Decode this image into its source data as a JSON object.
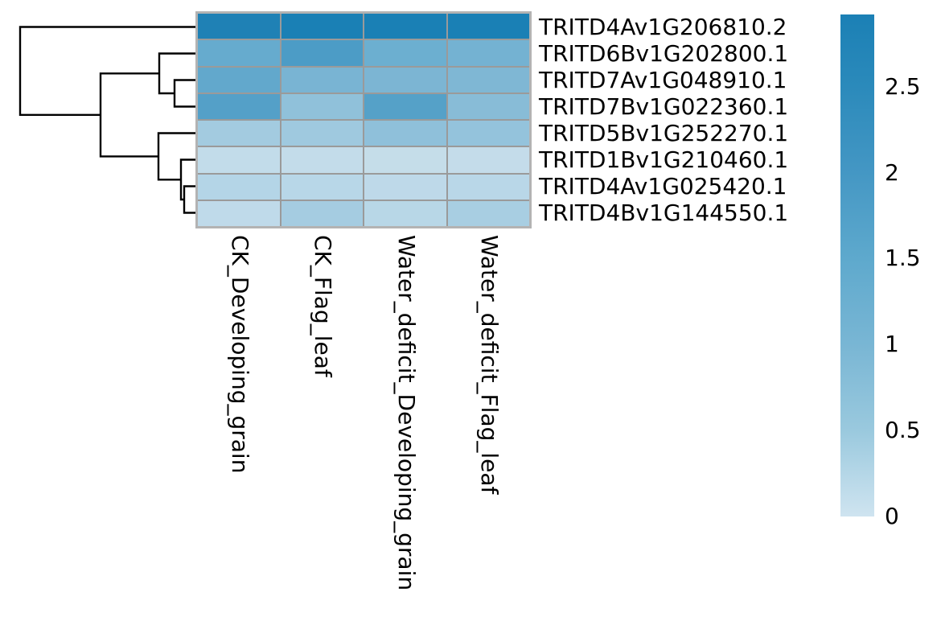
{
  "figure": {
    "background": "#ffffff",
    "text_color": "#000000"
  },
  "chart_data": {
    "type": "heatmap",
    "title": "",
    "xlabel": "",
    "ylabel": "",
    "legend_position": "right",
    "grid": "on",
    "grid_line_color": "#9a9a9a",
    "border_color": "#b3b3b3",
    "columns": [
      "CK_Developing_grain",
      "CK_Flag_leaf",
      "Water_deficit_Developing_grain",
      "Water_deficit_Flag_leaf"
    ],
    "rows": [
      "TRITD4Av1G206810.2",
      "TRITD6Bv1G202800.1",
      "TRITD7Av1G048910.1",
      "TRITD7Bv1G022360.1",
      "TRITD5Bv1G252270.1",
      "TRITD1Bv1G210460.1",
      "TRITD4Av1G025420.1",
      "TRITD4Bv1G144550.1"
    ],
    "values": [
      [
        2.9,
        2.9,
        2.9,
        2.9
      ],
      [
        1.4,
        1.9,
        1.25,
        1.1
      ],
      [
        1.45,
        1.0,
        1.0,
        0.95
      ],
      [
        1.7,
        0.7,
        1.7,
        0.8
      ],
      [
        0.45,
        0.5,
        0.7,
        0.6
      ],
      [
        0.2,
        0.2,
        0.18,
        0.19
      ],
      [
        0.3,
        0.28,
        0.25,
        0.27
      ],
      [
        0.2,
        0.45,
        0.3,
        0.4
      ]
    ],
    "cell_colors": [
      [
        "#1f81b5",
        "#1a80b5",
        "#1a80b5",
        "#1a80b5"
      ],
      [
        "#66abce",
        "#4c9cc6",
        "#6cafd0",
        "#74b2d2"
      ],
      [
        "#62a8cc",
        "#79b4d3",
        "#7cb5d3",
        "#7fb7d4"
      ],
      [
        "#54a0c8",
        "#90c1da",
        "#55a1c8",
        "#88bcd7"
      ],
      [
        "#a3cbe0",
        "#9fc9df",
        "#8fc0da",
        "#94c3dc"
      ],
      [
        "#c2dcea",
        "#c3dcea",
        "#c5dde9",
        "#c4dcea"
      ],
      [
        "#b4d5e7",
        "#b8d7e8",
        "#bed9e9",
        "#b9d7e8"
      ],
      [
        "#bfdaea",
        "#a5cce1",
        "#b8d7e7",
        "#a8cee2"
      ]
    ],
    "colorbar": {
      "min": 0,
      "max": 2.92,
      "ticks": [
        {
          "label": "2.5",
          "value": 2.5
        },
        {
          "label": "2",
          "value": 2.0
        },
        {
          "label": "1.5",
          "value": 1.5
        },
        {
          "label": "1",
          "value": 1.0
        },
        {
          "label": "0.5",
          "value": 0.5
        },
        {
          "label": "0",
          "value": 0.0
        }
      ],
      "gradient": [
        {
          "value": 2.92,
          "color": "#1b80b5"
        },
        {
          "value": 2.5,
          "color": "#2b8abb"
        },
        {
          "value": 2.0,
          "color": "#4497c4"
        },
        {
          "value": 1.5,
          "color": "#5ea9cd"
        },
        {
          "value": 1.0,
          "color": "#79b6d4"
        },
        {
          "value": 0.5,
          "color": "#9ac9de"
        },
        {
          "value": 0.0,
          "color": "#cfe4f0"
        }
      ]
    },
    "row_dendrogram": {
      "line_color": "#000000",
      "line_width": 2.4,
      "newick": "(TRITD4Av1G206810.2,((TRITD6Bv1G202800.1,(TRITD7Av1G048910.1,TRITD7Bv1G022360.1)),(TRITD5Bv1G252270.1,(TRITD1Bv1G210460.1,(TRITD4Av1G025420.1,TRITD4Bv1G144550.1)))))",
      "segments": [
        [
          [
            244,
            33.5
          ],
          [
            25,
            33.5
          ],
          [
            25,
            142.8
          ],
          [
            125,
            142.8
          ]
        ],
        [
          [
            198,
            91.3
          ],
          [
            125,
            91.3
          ],
          [
            125,
            194.4
          ],
          [
            197,
            194.4
          ]
        ],
        [
          [
            244,
            66.5
          ],
          [
            198,
            66.5
          ],
          [
            198,
            116
          ],
          [
            217,
            116
          ]
        ],
        [
          [
            244,
            99.5
          ],
          [
            217,
            99.5
          ],
          [
            217,
            132.5
          ],
          [
            244,
            132.5
          ]
        ],
        [
          [
            244,
            165.5
          ],
          [
            197,
            165.5
          ],
          [
            197,
            223.3
          ],
          [
            225,
            223.3
          ]
        ],
        [
          [
            244,
            198.5
          ],
          [
            225,
            198.5
          ],
          [
            225,
            248
          ],
          [
            229,
            248
          ]
        ],
        [
          [
            244,
            231.5
          ],
          [
            229,
            231.5
          ],
          [
            229,
            264.5
          ],
          [
            244,
            264.5
          ]
        ]
      ]
    }
  }
}
